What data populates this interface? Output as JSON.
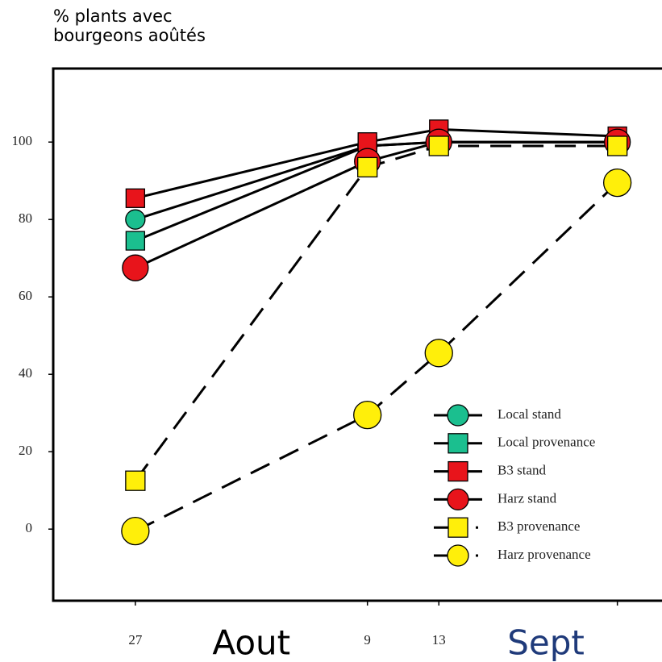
{
  "chart_data": {
    "type": "line",
    "ylabel": [
      "% plants avec",
      "bourgeons aoûtés"
    ],
    "x": [
      27,
      40,
      44,
      54
    ],
    "xticks": [
      {
        "value": 27,
        "label": "27"
      },
      {
        "value": 40,
        "label": "9"
      },
      {
        "value": 44,
        "label": "13"
      }
    ],
    "xticks_unlabeled": [
      54
    ],
    "xlim": [
      22.4,
      56.5
    ],
    "ylim": [
      -18.5,
      119
    ],
    "yticks": [
      0,
      20,
      40,
      60,
      80,
      100
    ],
    "months": [
      {
        "label": "Aout",
        "value": 33.5,
        "color": "#000000"
      },
      {
        "label": "Sept",
        "value": 50,
        "color": "#1f3a7a"
      }
    ],
    "legend": "lower right",
    "series": [
      {
        "name": "Local stand",
        "color": "#1bbf8f",
        "marker": "circle",
        "dashed": false,
        "values": [
          80,
          99,
          100,
          100
        ]
      },
      {
        "name": "Local provenance",
        "color": "#1bbf8f",
        "marker": "square",
        "dashed": false,
        "values": [
          74.5,
          99,
          100,
          100
        ]
      },
      {
        "name": "B3 stand",
        "color": "#e8141b",
        "marker": "square",
        "dashed": false,
        "values": [
          85.5,
          100,
          103.3,
          101.5
        ]
      },
      {
        "name": "Harz stand",
        "color": "#e8141b",
        "marker": "circle",
        "dashed": false,
        "values": [
          67.5,
          95,
          100,
          100
        ]
      },
      {
        "name": "B3 provenance",
        "color": "#ffef0a",
        "marker": "square",
        "dashed": true,
        "values": [
          12.5,
          93.5,
          99,
          99
        ]
      },
      {
        "name": "Harz provenance",
        "color": "#ffef0a",
        "marker": "circle",
        "dashed": true,
        "values": [
          -0.5,
          29.5,
          45.5,
          89.5
        ]
      }
    ]
  }
}
